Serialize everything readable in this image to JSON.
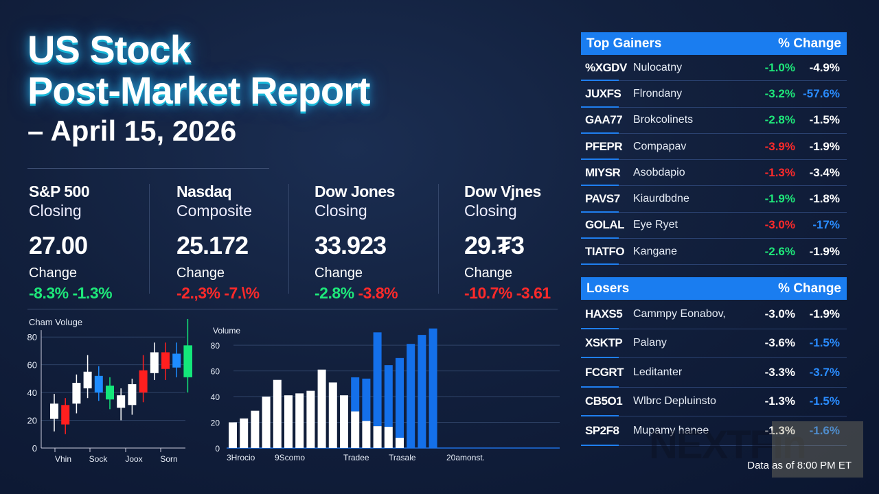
{
  "title": {
    "line1": "US Stock",
    "line2": "Post-Market Report",
    "line3": "– April 15, 2026"
  },
  "indices": [
    {
      "name": "S&P 500",
      "sub": "Closing",
      "value": "27.00",
      "change_label": "Change",
      "change1": "-8.3%",
      "change2": "-1.3%",
      "c1": "pos",
      "c2": "pos"
    },
    {
      "name": "Nasdaq",
      "sub": "Composite",
      "value": "25.172",
      "change_label": "Change",
      "change1": "-2.,3%",
      "change2": "-7.\\%",
      "c1": "neg",
      "c2": "neg"
    },
    {
      "name": "Dow Jones",
      "sub": "Closing",
      "value": "33.923",
      "change_label": "Change",
      "change1": "-2.8%",
      "change2": "-3.8%",
      "c1": "pos",
      "c2": "neg"
    },
    {
      "name": "Dow Vjnes",
      "sub": "Closing",
      "value": "29.₮3",
      "change_label": "Change",
      "change1": "-10.7%",
      "change2": "-3.61",
      "c1": "neg",
      "c2": "neg"
    }
  ],
  "gainers": {
    "title": "Top Gainers",
    "col": "% Change",
    "rows": [
      {
        "ticker": "%XGDV",
        "company": "Nulocatny",
        "c1": "-1.0%",
        "c2": "-4.9%",
        "k1": "pos",
        "k2": "white"
      },
      {
        "ticker": "JUXFS",
        "company": "Flrondany",
        "c1": "-3.2%",
        "c2": "-57.6%",
        "k1": "pos",
        "k2": "blue"
      },
      {
        "ticker": "GAA77",
        "company": "Brokcolinets",
        "c1": "-2.8%",
        "c2": "-1.5%",
        "k1": "pos",
        "k2": "white"
      },
      {
        "ticker": "PFEPR",
        "company": "Compapav",
        "c1": "-3.9%",
        "c2": "-1.9%",
        "k1": "neg",
        "k2": "white"
      },
      {
        "ticker": "MIYSR",
        "company": "Asobdapio",
        "c1": "-1.3%",
        "c2": "-3.4%",
        "k1": "neg",
        "k2": "white"
      },
      {
        "ticker": "PAVS7",
        "company": "Kiaurdbdne",
        "c1": "-1.9%",
        "c2": "-1.8%",
        "k1": "pos",
        "k2": "white"
      },
      {
        "ticker": "GOLAL",
        "company": "Eye Ryet",
        "c1": "-3.0%",
        "c2": "-17%",
        "k1": "neg",
        "k2": "blue"
      },
      {
        "ticker": "TIATFO",
        "company": "Kangane",
        "c1": "-2.6%",
        "c2": "-1.9%",
        "k1": "pos",
        "k2": "white"
      }
    ]
  },
  "losers": {
    "title": "Losers",
    "col": "% Change",
    "rows": [
      {
        "ticker": "HAXS5",
        "company": "Cammpy Eonabov,",
        "c1": "-3.0%",
        "c2": "-1.9%",
        "k1": "white",
        "k2": "white"
      },
      {
        "ticker": "XSKTP",
        "company": "Palany",
        "c1": "-3.6%",
        "c2": "-1.5%",
        "k1": "white",
        "k2": "blue"
      },
      {
        "ticker": "FCGRT",
        "company": "Leditanter",
        "c1": "-3.3%",
        "c2": "-3.7%",
        "k1": "white",
        "k2": "blue"
      },
      {
        "ticker": "CB5O1",
        "company": "Wlbrc Depluinsto",
        "c1": "-1.3%",
        "c2": "-1.5%",
        "k1": "white",
        "k2": "blue"
      },
      {
        "ticker": "SP2F8",
        "company": "Mupamy hanee",
        "c1": "-1.3%",
        "c2": "-1.6%",
        "k1": "white",
        "k2": "blue"
      }
    ]
  },
  "footer": "Data as of 8:00 PM ET",
  "watermark": "NEXTFin",
  "colors": {
    "up": "#1ee87a",
    "down": "#ff2a2a",
    "accent": "#1a7df0",
    "blue_candle": "#1e8cff",
    "white": "#ffffff"
  },
  "chart_data": [
    {
      "type": "candlestick",
      "title": "Cham Voluge",
      "ylim": [
        0,
        90
      ],
      "yticks": [
        0,
        20,
        40,
        60,
        80
      ],
      "grid": true,
      "xlabels": [
        "Vhin",
        "Sock",
        "Joox",
        "Sorn"
      ],
      "candles": [
        {
          "open": 21,
          "close": 32,
          "high": 39,
          "low": 12,
          "color": "white"
        },
        {
          "open": 31,
          "close": 17,
          "high": 36,
          "low": 10,
          "color": "red"
        },
        {
          "open": 32,
          "close": 47,
          "high": 53,
          "low": 25,
          "color": "white"
        },
        {
          "open": 43,
          "close": 55,
          "high": 67,
          "low": 36,
          "color": "white"
        },
        {
          "open": 52,
          "close": 40,
          "high": 59,
          "low": 34,
          "color": "blue"
        },
        {
          "open": 35,
          "close": 45,
          "high": 51,
          "low": 28,
          "color": "green"
        },
        {
          "open": 29,
          "close": 38,
          "high": 43,
          "low": 20,
          "color": "white"
        },
        {
          "open": 31,
          "close": 46,
          "high": 50,
          "low": 24,
          "color": "white"
        },
        {
          "open": 40,
          "close": 56,
          "high": 67,
          "low": 33,
          "color": "red"
        },
        {
          "open": 54,
          "close": 69,
          "high": 76,
          "low": 49,
          "color": "white"
        },
        {
          "open": 57,
          "close": 69,
          "high": 76,
          "low": 49,
          "color": "red"
        },
        {
          "open": 58,
          "close": 68,
          "high": 76,
          "low": 51,
          "color": "blue"
        },
        {
          "open": 51,
          "close": 74,
          "high": 93,
          "low": 40,
          "color": "green"
        }
      ]
    },
    {
      "type": "bar",
      "title": "Volume",
      "ylim": [
        0,
        95
      ],
      "yticks": [
        0,
        20,
        40,
        60,
        80
      ],
      "grid": true,
      "xlabels": [
        "3Hrocio",
        "9Scomo",
        "Tradee",
        "Trasale",
        "20amonst."
      ],
      "series": [
        {
          "values": [
            20,
            23,
            29,
            40,
            53,
            41,
            42.5,
            44.5,
            61,
            51,
            41,
            28.5,
            21,
            17,
            16.5,
            8,
            0,
            0,
            0
          ]
        },
        {
          "values": [
            0,
            0,
            0,
            0,
            0,
            0,
            0,
            0,
            0,
            0,
            0,
            26.5,
            33,
            73,
            48,
            62,
            81,
            88,
            93
          ]
        }
      ]
    }
  ]
}
